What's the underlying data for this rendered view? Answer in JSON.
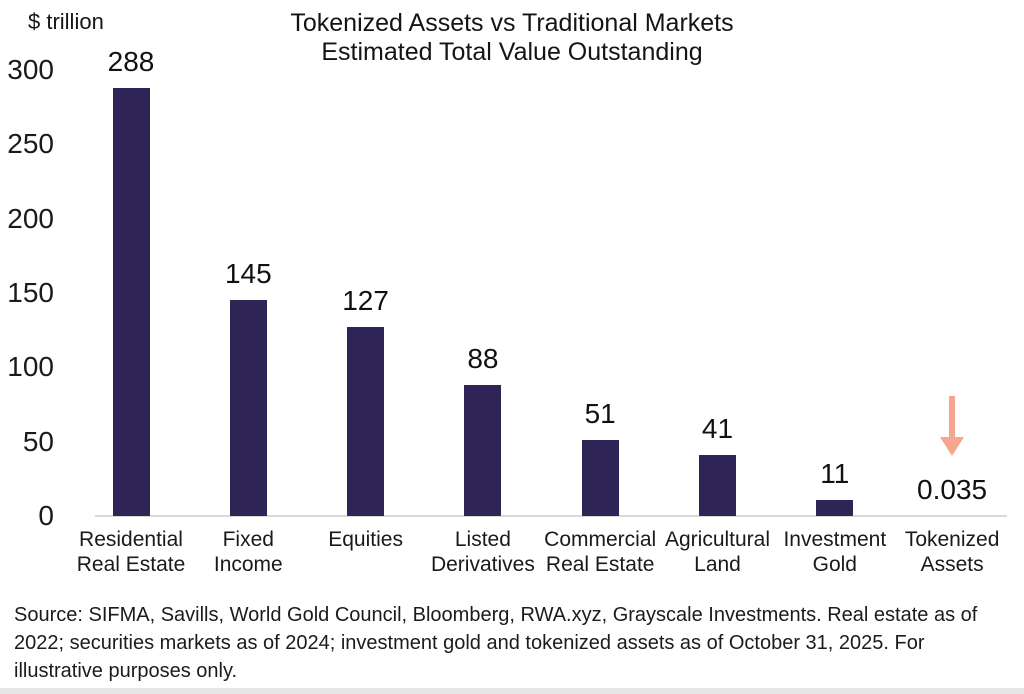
{
  "chart_data": {
    "type": "bar",
    "title": "Tokenized Assets vs Traditional Markets Estimated Total Value Outstanding",
    "title_lines": [
      "Tokenized Assets vs Traditional Markets",
      "Estimated Total Value Outstanding"
    ],
    "unit": "$ trillion",
    "categories": [
      "Residential\nReal Estate",
      "Fixed\nIncome",
      "Equities",
      "Listed\nDerivatives",
      "Commercial\nReal Estate",
      "Agricultural\nLand",
      "Investment\nGold",
      "Tokenized\nAssets"
    ],
    "values": [
      288,
      145,
      127,
      88,
      51,
      41,
      11,
      0.035
    ],
    "value_labels": [
      "288",
      "145",
      "127",
      "88",
      "51",
      "41",
      "11",
      "0.035"
    ],
    "y_ticks": [
      300,
      250,
      200,
      150,
      100,
      50,
      0
    ],
    "ylim": [
      0,
      300
    ],
    "grid": false,
    "legend": "none",
    "bar_color": "#2e2456",
    "axis_line_color": "#d9d9d9",
    "annotation": {
      "shape": "down-arrow",
      "category_index": 7,
      "color": "#f6a58e"
    }
  },
  "footer": {
    "lines": [
      "Source: SIFMA, Savills, World Gold Council, Bloomberg, RWA.xyz, Grayscale Investments. Real estate as of",
      "2022; securities markets as of 2024; investment gold and tokenized assets as of October 31, 2025. For",
      "illustrative purposes only."
    ]
  }
}
